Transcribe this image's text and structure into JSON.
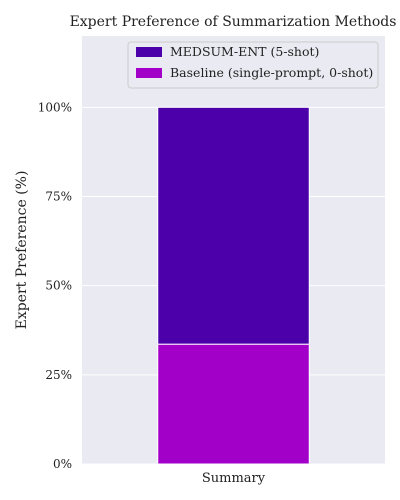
{
  "chart_data": {
    "type": "bar",
    "stacked": true,
    "title": "Expert Preference of Summarization Methods",
    "xlabel": "",
    "ylabel": "Expert Preference (%)",
    "categories": [
      "Summary"
    ],
    "ylim": [
      0,
      120
    ],
    "yticks": [
      0,
      25,
      50,
      75,
      100
    ],
    "ytick_labels": [
      "0%",
      "25%",
      "50%",
      "75%",
      "100%"
    ],
    "grid": true,
    "legend_position": "top-center",
    "series": [
      {
        "name": "Baseline (single-prompt, 0-shot)",
        "values": [
          33.6
        ],
        "color": "#a200c8"
      },
      {
        "name": "MEDSUM-ENT (5-shot)",
        "values": [
          66.4
        ],
        "color": "#4b00aa"
      }
    ],
    "legend_order": [
      1,
      0
    ],
    "background": "#eaeaf2"
  }
}
